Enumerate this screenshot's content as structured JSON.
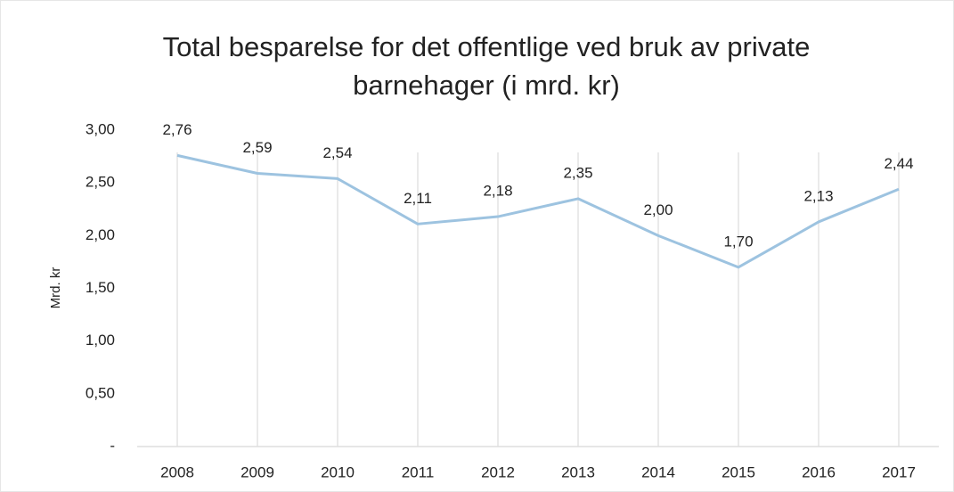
{
  "chart_data": {
    "type": "line",
    "title": "Total besparelse for det offentlige ved bruk av private barnehager (i mrd. kr)",
    "y_label": "Mrd. kr",
    "categories": [
      "2008",
      "2009",
      "2010",
      "2011",
      "2012",
      "2013",
      "2014",
      "2015",
      "2016",
      "2017"
    ],
    "values": [
      2.76,
      2.59,
      2.54,
      2.11,
      2.18,
      2.35,
      2.0,
      1.7,
      2.13,
      2.44
    ],
    "value_labels": [
      "2,76",
      "2,59",
      "2,54",
      "2,11",
      "2,18",
      "2,35",
      "2,00",
      "1,70",
      "2,13",
      "2,44"
    ],
    "color": "#9dc3e0",
    "ylim": [
      0,
      3
    ],
    "yticks": [
      {
        "value": 0,
        "label": "-"
      },
      {
        "value": 0.5,
        "label": "0,50"
      },
      {
        "value": 1,
        "label": "1,00"
      },
      {
        "value": 1.5,
        "label": "1,50"
      },
      {
        "value": 2,
        "label": "2,00"
      },
      {
        "value": 2.5,
        "label": "2,50"
      },
      {
        "value": 3,
        "label": "3,00"
      }
    ],
    "grid": true
  }
}
